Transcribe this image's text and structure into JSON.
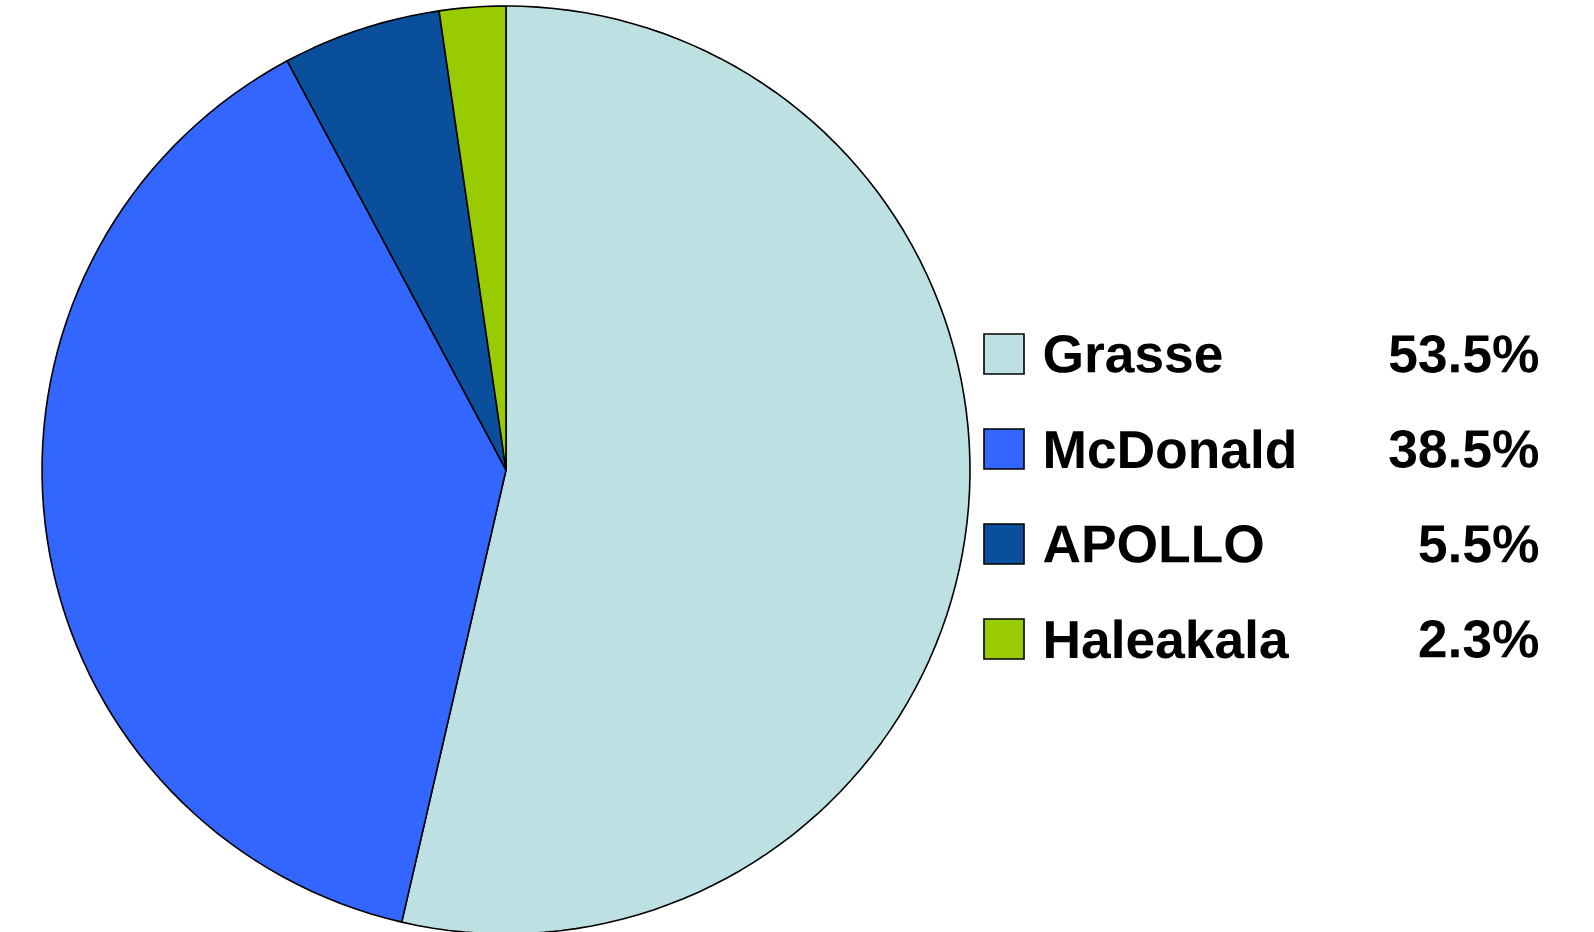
{
  "chart_data": {
    "type": "pie",
    "categories": [
      "Grasse",
      "McDonald",
      "APOLLO",
      "Haleakala"
    ],
    "values": [
      53.5,
      38.5,
      5.5,
      2.3
    ],
    "value_labels": [
      "53.5%",
      "38.5%",
      "5.5%",
      "2.3%"
    ],
    "colors": [
      "#bde0e3",
      "#3366ff",
      "#0a4f9c",
      "#99cc00"
    ],
    "legend": "right"
  }
}
